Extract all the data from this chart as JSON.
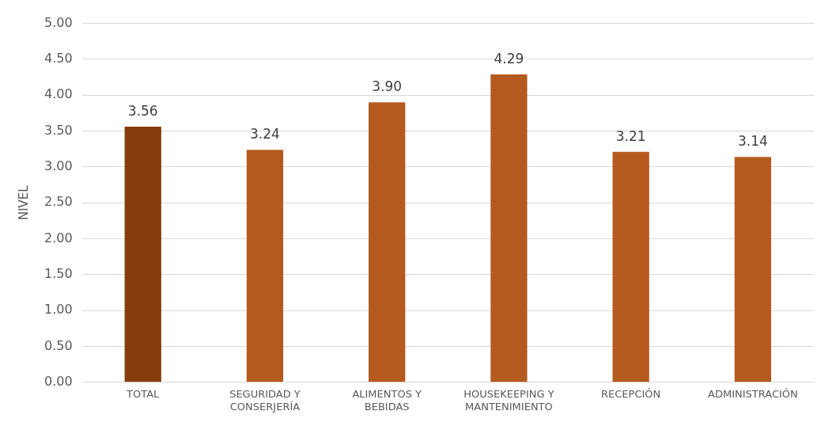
{
  "chart_data": {
    "type": "bar",
    "ylabel": "NIVEL",
    "categories": [
      "TOTAL",
      "SEGURIDAD Y CONSERJERÍA",
      "ALIMENTOS Y BEBIDAS",
      "HOUSEKEEPING Y MANTENIMIENTO",
      "RECEPCIÓN",
      "ADMINISTRACIÓN"
    ],
    "values": [
      3.56,
      3.24,
      3.9,
      4.29,
      3.21,
      3.14
    ],
    "colors": [
      "#843c0c",
      "#b55a1e",
      "#b55a1e",
      "#b55a1e",
      "#b55a1e",
      "#b55a1e"
    ],
    "ylim": [
      0,
      5
    ],
    "yticks": [
      {
        "value": 0,
        "label": "0.00"
      },
      {
        "value": 0.5,
        "label": "0.50"
      },
      {
        "value": 1,
        "label": "1.00"
      },
      {
        "value": 1.5,
        "label": "1.50"
      },
      {
        "value": 2,
        "label": "2.00"
      },
      {
        "value": 2.5,
        "label": "2.50"
      },
      {
        "value": 3,
        "label": "3.00"
      },
      {
        "value": 3.5,
        "label": "3.50"
      },
      {
        "value": 4,
        "label": "4.00"
      },
      {
        "value": 4.5,
        "label": "4.50"
      },
      {
        "value": 5,
        "label": "5.00"
      }
    ],
    "value_labels": [
      "3.56",
      "3.24",
      "3.90",
      "4.29",
      "3.21",
      "3.14"
    ],
    "grid": "y"
  }
}
